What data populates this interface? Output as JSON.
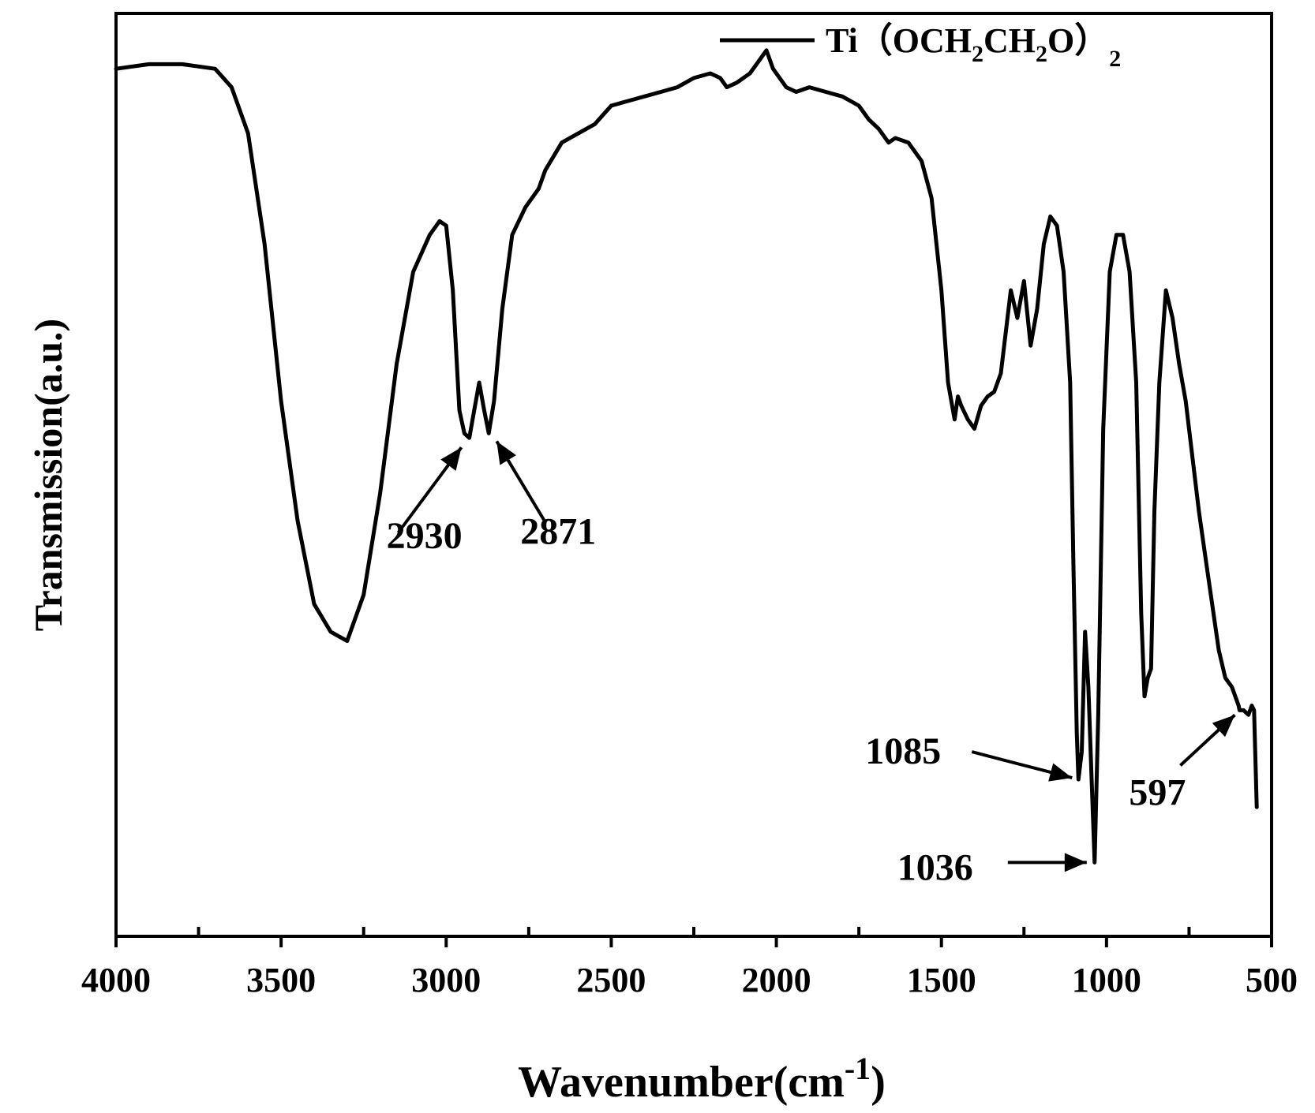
{
  "chart_data": {
    "type": "line",
    "title": "",
    "xlabel": "Wavenumber(cm",
    "xlabel_sup": "-1",
    "xlabel_close": ")",
    "ylabel": "Transmission(a.u.)",
    "xlim": [
      4000,
      500
    ],
    "ylim": [
      0,
      100
    ],
    "x_reversed": true,
    "y_ticks_shown": false,
    "x_ticks": [
      "4000",
      "3500",
      "3000",
      "2500",
      "2000",
      "1500",
      "1000",
      "500"
    ],
    "legend": {
      "position": "top-right",
      "text": "Ti（OCH",
      "sub1": "2",
      "text2": "CH",
      "sub2": "2",
      "text3": "O）",
      "sub3": "2"
    },
    "series": [
      {
        "color": "#000000",
        "x": [
          4000,
          3900,
          3800,
          3700,
          3650,
          3600,
          3550,
          3500,
          3450,
          3400,
          3350,
          3300,
          3250,
          3200,
          3150,
          3100,
          3050,
          3020,
          3000,
          2980,
          2960,
          2945,
          2930,
          2915,
          2900,
          2885,
          2871,
          2855,
          2830,
          2800,
          2760,
          2720,
          2700,
          2650,
          2600,
          2550,
          2500,
          2450,
          2400,
          2350,
          2300,
          2250,
          2200,
          2170,
          2150,
          2120,
          2100,
          2080,
          2050,
          2030,
          2010,
          1990,
          1970,
          1940,
          1900,
          1850,
          1800,
          1750,
          1720,
          1690,
          1660,
          1640,
          1600,
          1560,
          1530,
          1500,
          1480,
          1460,
          1450,
          1440,
          1420,
          1400,
          1380,
          1360,
          1340,
          1320,
          1290,
          1270,
          1250,
          1230,
          1210,
          1190,
          1170,
          1150,
          1130,
          1110,
          1100,
          1090,
          1085,
          1075,
          1065,
          1055,
          1045,
          1036,
          1025,
          1010,
          990,
          970,
          950,
          930,
          910,
          895,
          885,
          875,
          865,
          855,
          840,
          820,
          800,
          780,
          760,
          740,
          720,
          700,
          680,
          660,
          640,
          620,
          600,
          597,
          585,
          570,
          560,
          553,
          545
        ],
        "y": [
          94,
          94.5,
          94.5,
          94,
          92,
          87,
          75,
          58,
          45,
          36,
          33,
          32,
          37,
          48,
          62,
          72,
          76,
          77.5,
          77,
          70,
          57,
          54.5,
          54,
          57,
          60,
          57,
          54.5,
          58,
          68,
          76,
          79,
          81,
          83,
          86,
          87,
          88,
          90,
          90.5,
          91,
          91.5,
          92,
          93,
          93.5,
          93,
          92,
          92.5,
          93,
          93.5,
          95,
          96,
          94,
          93,
          92,
          91.5,
          92,
          91.5,
          91,
          90,
          88.5,
          87.5,
          86,
          86.5,
          86,
          84,
          80,
          70,
          60,
          56,
          58.5,
          57.5,
          56,
          55,
          57.5,
          58.5,
          59,
          61,
          70,
          67,
          71,
          64,
          68,
          75,
          78,
          77,
          72,
          60,
          40,
          22,
          17,
          20,
          33,
          27,
          17,
          8,
          24,
          55,
          72,
          76,
          76,
          72,
          60,
          35,
          26,
          28,
          29,
          46,
          60,
          70,
          67,
          62,
          58,
          52,
          46,
          41,
          36,
          31,
          28,
          27,
          25,
          24.5,
          24.5,
          24,
          25,
          24.5,
          14
        ]
      }
    ],
    "annotations": [
      {
        "text": "2930",
        "x": 2930,
        "y": 54
      },
      {
        "text": "2871",
        "x": 2871,
        "y": 54.5
      },
      {
        "text": "1085",
        "x": 1085,
        "y": 17
      },
      {
        "text": "1036",
        "x": 1036,
        "y": 8
      },
      {
        "text": "597",
        "x": 597,
        "y": 24.5
      }
    ]
  }
}
